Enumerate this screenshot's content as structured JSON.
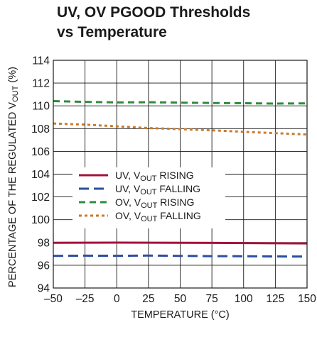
{
  "chart_data": {
    "type": "line",
    "title_line1": "UV, OV PGOOD Thresholds",
    "title_line2": "vs Temperature",
    "xlabel": "TEMPERATURE (°C)",
    "ylabel": {
      "prefix": "PERCENTAGE OF THE REGULATED V",
      "sub": "OUT",
      "suffix": " (%)"
    },
    "xlim": [
      -50,
      150
    ],
    "ylim": [
      94,
      114
    ],
    "x_ticks": [
      -50,
      -25,
      0,
      25,
      50,
      75,
      100,
      125,
      150
    ],
    "x_tick_labels": [
      "–50",
      "–25",
      "0",
      "25",
      "50",
      "75",
      "100",
      "125",
      "150"
    ],
    "y_ticks": [
      94,
      96,
      98,
      100,
      102,
      104,
      106,
      108,
      110,
      112,
      114
    ],
    "y_tick_labels": [
      "94",
      "96",
      "98",
      "100",
      "102",
      "104",
      "106",
      "108",
      "110",
      "112",
      "114"
    ],
    "grid": true,
    "legend_position": "center-left",
    "series": [
      {
        "legend_prefix": "UV, V",
        "legend_sub": "OUT",
        "legend_suffix": " RISING",
        "color": "#a0143c",
        "dash": "solid",
        "x": [
          -50,
          -25,
          0,
          25,
          50,
          75,
          100,
          125,
          150
        ],
        "y": [
          97.97,
          97.98,
          97.99,
          97.98,
          97.97,
          97.96,
          97.95,
          97.93,
          97.92
        ]
      },
      {
        "legend_prefix": "UV, V",
        "legend_sub": "OUT",
        "legend_suffix": " FALLING",
        "color": "#2b4ea2",
        "dash": "long-dash",
        "x": [
          -50,
          -25,
          0,
          25,
          50,
          75,
          100,
          125,
          150
        ],
        "y": [
          96.82,
          96.84,
          96.83,
          96.85,
          96.82,
          96.8,
          96.79,
          96.77,
          96.76
        ]
      },
      {
        "legend_prefix": "OV, V",
        "legend_sub": "OUT",
        "legend_suffix": " RISING",
        "color": "#2e8b3e",
        "dash": "dash",
        "x": [
          -50,
          -25,
          0,
          25,
          50,
          75,
          100,
          125,
          150
        ],
        "y": [
          110.42,
          110.35,
          110.3,
          110.32,
          110.28,
          110.25,
          110.23,
          110.2,
          110.22
        ]
      },
      {
        "legend_prefix": "OV, V",
        "legend_sub": "OUT",
        "legend_suffix": " FALLING",
        "color": "#c97a2b",
        "dash": "dot",
        "x": [
          -50,
          -25,
          0,
          25,
          50,
          75,
          100,
          125,
          150
        ],
        "y": [
          108.45,
          108.35,
          108.2,
          108.05,
          107.95,
          107.85,
          107.72,
          107.6,
          107.48
        ]
      }
    ]
  }
}
